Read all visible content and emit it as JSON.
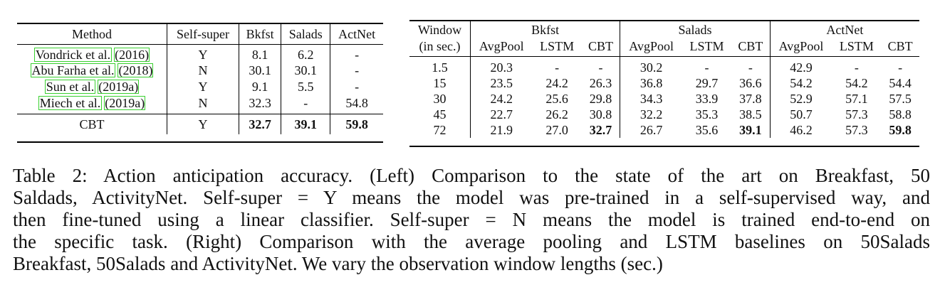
{
  "left_table": {
    "headers": [
      "Method",
      "Self-super",
      "Bkfst",
      "Salads",
      "ActNet"
    ],
    "rows": [
      {
        "method": "Vondrick et al.",
        "year": "(2016)",
        "self_super": "Y",
        "bkfst": "8.1",
        "salads": "6.2",
        "actnet": "-"
      },
      {
        "method": "Abu Farha et al.",
        "year": "(2018)",
        "self_super": "N",
        "bkfst": "30.1",
        "salads": "30.1",
        "actnet": "-"
      },
      {
        "method": "Sun et al.",
        "year": "(2019a)",
        "self_super": "Y",
        "bkfst": "9.1",
        "salads": "5.5",
        "actnet": "-"
      },
      {
        "method": "Miech et al.",
        "year": "(2019a)",
        "self_super": "N",
        "bkfst": "32.3",
        "salads": "-",
        "actnet": "54.8"
      }
    ],
    "final_row": {
      "method": "CBT",
      "self_super": "Y",
      "bkfst": "32.7",
      "salads": "39.1",
      "actnet": "59.8"
    }
  },
  "right_table": {
    "window_header_1": "Window",
    "window_header_2": "(in sec.)",
    "groups": [
      "Bkfst",
      "Salads",
      "ActNet"
    ],
    "sub_headers": [
      "AvgPool",
      "LSTM",
      "CBT"
    ],
    "rows": [
      {
        "window": "1.5",
        "values": [
          "20.3",
          "-",
          "-",
          "30.2",
          "-",
          "-",
          "42.9",
          "-",
          "-"
        ]
      },
      {
        "window": "15",
        "values": [
          "23.5",
          "24.2",
          "26.3",
          "36.8",
          "29.7",
          "36.6",
          "54.2",
          "54.2",
          "54.4"
        ]
      },
      {
        "window": "30",
        "values": [
          "24.2",
          "25.6",
          "29.8",
          "34.3",
          "33.9",
          "37.8",
          "52.9",
          "57.1",
          "57.5"
        ]
      },
      {
        "window": "45",
        "values": [
          "22.7",
          "26.2",
          "30.8",
          "32.2",
          "35.3",
          "38.5",
          "50.7",
          "57.3",
          "58.8"
        ]
      },
      {
        "window": "72",
        "values": [
          "21.9",
          "27.0",
          "32.7",
          "26.7",
          "35.6",
          "39.1",
          "46.2",
          "57.3",
          "59.8"
        ]
      }
    ]
  },
  "caption": {
    "lines": [
      "Table 2: Action anticipation accuracy. (Left) Comparison to the state of the art on Breakfast, 50",
      "Saldads, ActivityNet. Self-super = Y means the model was pre-trained in a self-supervised way, and",
      "then fine-tuned using a linear classifier. Self-super = N means the model is trained end-to-end on",
      "the specific task. (Right) Comparison with the average pooling and LSTM baselines on 50Salads",
      "Breakfast, 50Salads and ActivityNet. We vary the observation window lengths (sec.)"
    ]
  }
}
